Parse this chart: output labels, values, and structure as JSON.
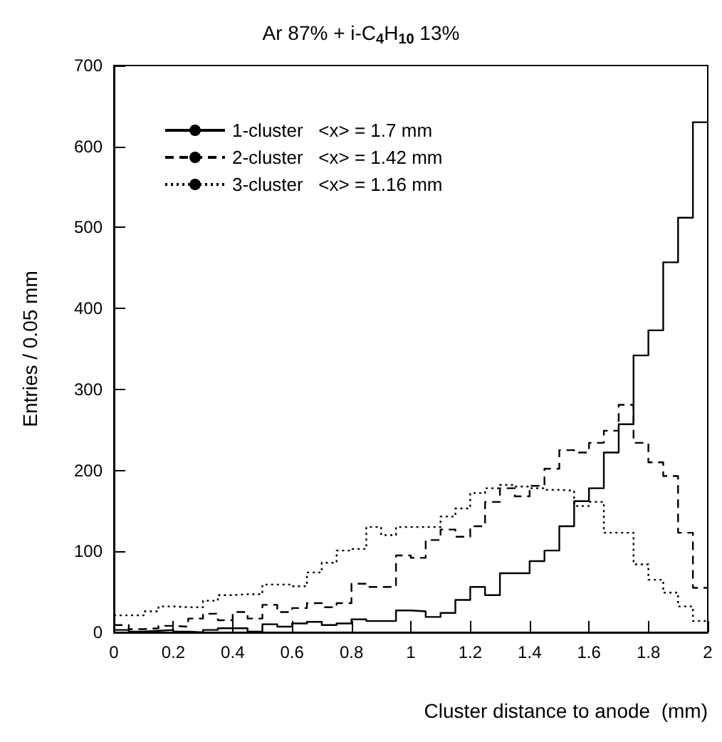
{
  "chart_data": {
    "type": "histogram",
    "title": "Ar 87% + i-C$_{4}$H$_{10}$ 13%",
    "xlabel": "Cluster distance to anode  (mm)",
    "ylabel": "Entries / 0.05 mm",
    "bins": [
      0,
      0.05,
      0.1,
      0.15,
      0.2,
      0.25,
      0.3,
      0.35,
      0.4,
      0.45,
      0.5,
      0.55,
      0.6,
      0.65,
      0.7,
      0.75,
      0.8,
      0.85,
      0.9,
      0.95,
      1,
      1.05,
      1.1,
      1.15,
      1.2,
      1.25,
      1.3,
      1.35,
      1.4,
      1.45,
      1.5,
      1.55,
      1.6,
      1.65,
      1.7,
      1.75,
      1.8,
      1.85,
      1.9,
      1.95,
      2
    ],
    "series": [
      {
        "name": "1-cluster   <x> = 1.7 mm",
        "color": "#000000",
        "line_style": "solid",
        "values": [
          3,
          1,
          2,
          3,
          1,
          0,
          3,
          5,
          5,
          1,
          10,
          7,
          11,
          13,
          9,
          11,
          16,
          14,
          14,
          27,
          26,
          19,
          24,
          40,
          56,
          46,
          73,
          73,
          88,
          101,
          131,
          162,
          178,
          222,
          257,
          342,
          373,
          457,
          512,
          630
        ]
      },
      {
        "name": "2-cluster   <x> = 1.42 mm",
        "color": "#000000",
        "line_style": "dashed",
        "values": [
          9,
          4,
          5,
          8,
          7,
          17,
          23,
          15,
          25,
          17,
          34,
          25,
          30,
          36,
          31,
          36,
          60,
          56,
          56,
          95,
          92,
          114,
          127,
          118,
          131,
          161,
          178,
          168,
          181,
          202,
          225,
          222,
          234,
          249,
          281,
          234,
          210,
          193,
          123,
          55
        ]
      },
      {
        "name": "3-cluster   <x> = 1.16 mm",
        "color": "#000000",
        "line_style": "dotted",
        "values": [
          21,
          21,
          26,
          32,
          31,
          31,
          39,
          46,
          47,
          47,
          59,
          59,
          57,
          74,
          86,
          101,
          103,
          130,
          120,
          130,
          130,
          130,
          143,
          153,
          172,
          178,
          182,
          180,
          178,
          176,
          175,
          156,
          161,
          123,
          123,
          84,
          65,
          49,
          32,
          14
        ]
      }
    ],
    "xlim": [
      0,
      2
    ],
    "xticks": [
      0,
      0.2,
      0.4,
      0.6,
      0.8,
      1,
      1.2,
      1.4,
      1.6,
      1.8,
      2
    ],
    "ylim": [
      0,
      700
    ],
    "yticks": [
      0,
      100,
      200,
      300,
      400,
      500,
      600,
      700
    ],
    "grid": false,
    "legend": "top left"
  }
}
